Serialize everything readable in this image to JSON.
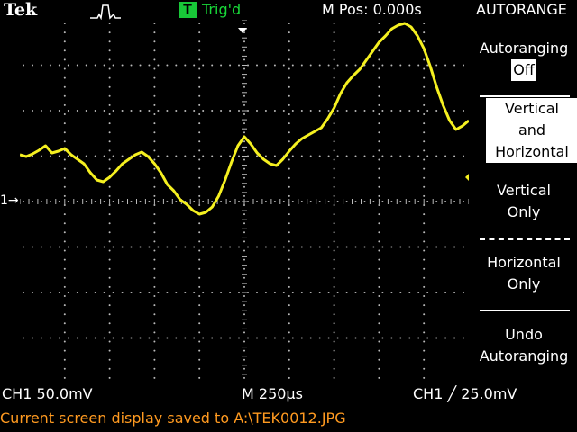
{
  "header": {
    "brand": "Tek",
    "trigger_badge": "T",
    "trigger_status": "Trig'd",
    "position": "M Pos: 0.000s",
    "menu_title": "AUTORANGE"
  },
  "side_menu": {
    "autoranging_label": "Autoranging",
    "autoranging_value": "Off",
    "vh_line1": "Vertical",
    "vh_line2": "and",
    "vh_line3": "Horizontal",
    "vo_line1": "Vertical",
    "vo_line2": "Only",
    "ho_line1": "Horizontal",
    "ho_line2": "Only",
    "undo_line1": "Undo",
    "undo_line2": "Autoranging"
  },
  "status": {
    "ch1_scale": "CH1  50.0mV",
    "timebase": "M 250µs",
    "trigger": "CH1 ╱ 25.0mV",
    "message": "Current screen display saved to A:\\TEK0012.JPG"
  },
  "channel_marker": "1→",
  "colors": {
    "trace": "#f5f020",
    "trigger_badge": "#18c838",
    "message": "#ff9a20"
  },
  "waveform": {
    "samples": [
      150,
      152,
      149,
      145,
      140,
      148,
      146,
      143,
      150,
      155,
      160,
      170,
      178,
      180,
      175,
      168,
      160,
      155,
      150,
      147,
      152,
      160,
      170,
      183,
      190,
      200,
      205,
      212,
      216,
      214,
      208,
      196,
      178,
      158,
      140,
      130,
      138,
      148,
      155,
      160,
      162,
      155,
      146,
      138,
      132,
      128,
      124,
      120,
      110,
      98,
      82,
      70,
      62,
      55,
      45,
      35,
      25,
      18,
      10,
      6,
      4,
      8,
      18,
      32,
      52,
      75,
      95,
      112,
      122,
      118,
      112
    ]
  }
}
